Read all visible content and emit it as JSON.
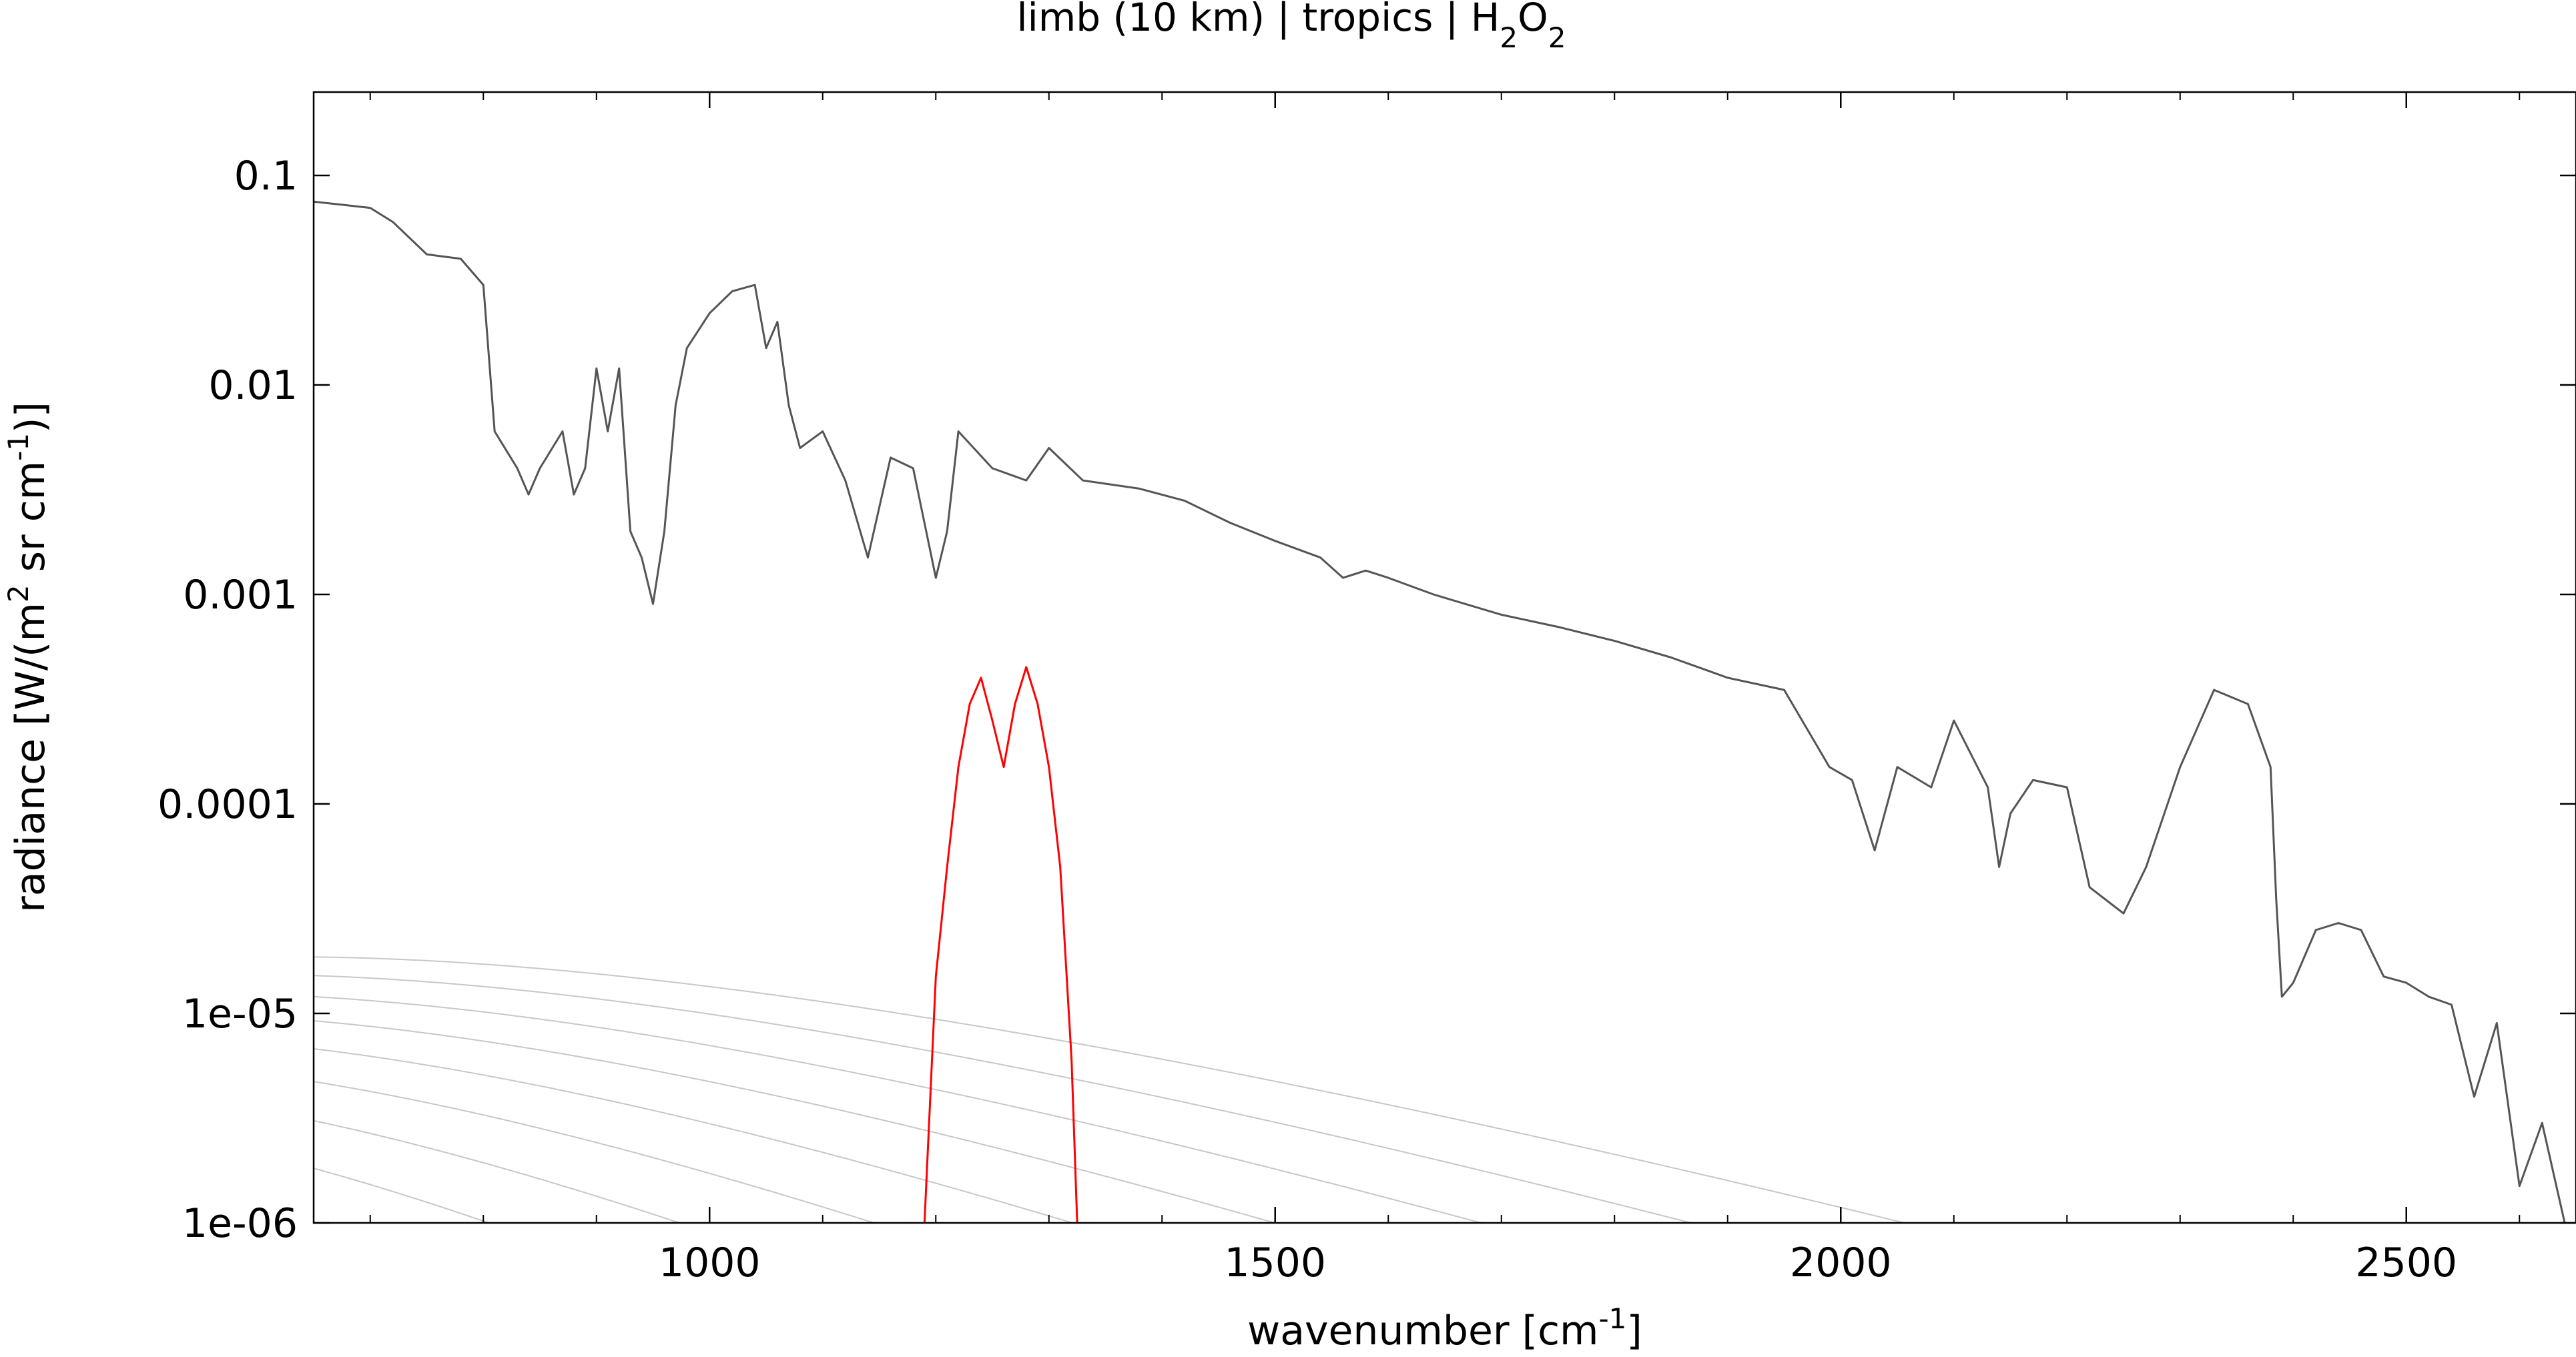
{
  "chart_data": {
    "type": "line",
    "title": {
      "prefix": "limb (10 km) | tropics | H",
      "sub1": "2",
      "mid": "O",
      "sub2": "2"
    },
    "xlabel": {
      "prefix": "wavenumber [cm",
      "sup": "-1",
      "suffix": "]"
    },
    "ylabel": {
      "prefix": "radiance [W/(m",
      "sup1": "2",
      "mid": " sr cm",
      "sup2": "-1",
      "suffix": ")]"
    },
    "x_range": [
      650,
      2650
    ],
    "y_range": [
      1e-06,
      0.25
    ],
    "y_scale": "log",
    "x_ticks": [
      1000,
      1500,
      2000,
      2500
    ],
    "x_tick_labels": [
      "1000",
      "1500",
      "2000",
      "2500"
    ],
    "y_ticks": [
      0.1,
      0.01,
      0.001,
      0.0001,
      1e-05,
      1e-06
    ],
    "y_tick_labels": [
      "0.1",
      "0.01",
      "0.001",
      "0.0001",
      "1e-05",
      "1e-06"
    ],
    "grid": false,
    "reference_curves_temperatures_K": [
      180,
      200,
      220,
      240,
      260,
      280,
      300,
      320
    ],
    "series": [
      {
        "role": "total-radiance",
        "color": "#555555",
        "points": [
          [
            650,
            0.075
          ],
          [
            700,
            0.07
          ],
          [
            720,
            0.06
          ],
          [
            750,
            0.042
          ],
          [
            780,
            0.04
          ],
          [
            800,
            0.03
          ],
          [
            810,
            0.006
          ],
          [
            830,
            0.004
          ],
          [
            840,
            0.003
          ],
          [
            850,
            0.004
          ],
          [
            870,
            0.006
          ],
          [
            880,
            0.003
          ],
          [
            890,
            0.004
          ],
          [
            900,
            0.012
          ],
          [
            910,
            0.006
          ],
          [
            920,
            0.012
          ],
          [
            930,
            0.002
          ],
          [
            940,
            0.0015
          ],
          [
            950,
            0.0009
          ],
          [
            960,
            0.002
          ],
          [
            970,
            0.008
          ],
          [
            980,
            0.015
          ],
          [
            1000,
            0.022
          ],
          [
            1020,
            0.028
          ],
          [
            1040,
            0.03
          ],
          [
            1050,
            0.015
          ],
          [
            1060,
            0.02
          ],
          [
            1070,
            0.008
          ],
          [
            1080,
            0.005
          ],
          [
            1100,
            0.006
          ],
          [
            1120,
            0.0035
          ],
          [
            1140,
            0.0015
          ],
          [
            1160,
            0.0045
          ],
          [
            1180,
            0.004
          ],
          [
            1200,
            0.0012
          ],
          [
            1210,
            0.002
          ],
          [
            1220,
            0.006
          ],
          [
            1250,
            0.004
          ],
          [
            1280,
            0.0035
          ],
          [
            1300,
            0.005
          ],
          [
            1330,
            0.0035
          ],
          [
            1380,
            0.0032
          ],
          [
            1420,
            0.0028
          ],
          [
            1460,
            0.0022
          ],
          [
            1500,
            0.0018
          ],
          [
            1540,
            0.0015
          ],
          [
            1560,
            0.0012
          ],
          [
            1580,
            0.0013
          ],
          [
            1600,
            0.0012
          ],
          [
            1640,
            0.001
          ],
          [
            1700,
            0.0008
          ],
          [
            1750,
            0.0007
          ],
          [
            1800,
            0.0006
          ],
          [
            1850,
            0.0005
          ],
          [
            1900,
            0.0004
          ],
          [
            1950,
            0.00035
          ],
          [
            1990,
            0.00015
          ],
          [
            2010,
            0.00013
          ],
          [
            2030,
            6e-05
          ],
          [
            2050,
            0.00015
          ],
          [
            2080,
            0.00012
          ],
          [
            2100,
            0.00025
          ],
          [
            2130,
            0.00012
          ],
          [
            2140,
            5e-05
          ],
          [
            2150,
            9e-05
          ],
          [
            2170,
            0.00013
          ],
          [
            2200,
            0.00012
          ],
          [
            2220,
            4e-05
          ],
          [
            2250,
            3e-05
          ],
          [
            2270,
            5e-05
          ],
          [
            2300,
            0.00015
          ],
          [
            2330,
            0.00035
          ],
          [
            2360,
            0.0003
          ],
          [
            2380,
            0.00015
          ],
          [
            2385,
            3.5e-05
          ],
          [
            2390,
            1.2e-05
          ],
          [
            2400,
            1.4e-05
          ],
          [
            2420,
            2.5e-05
          ],
          [
            2440,
            2.7e-05
          ],
          [
            2460,
            2.5e-05
          ],
          [
            2480,
            1.5e-05
          ],
          [
            2500,
            1.4e-05
          ],
          [
            2520,
            1.2e-05
          ],
          [
            2540,
            1.1e-05
          ],
          [
            2560,
            4e-06
          ],
          [
            2580,
            9e-06
          ],
          [
            2600,
            1.5e-06
          ],
          [
            2620,
            3e-06
          ],
          [
            2640,
            1e-06
          ]
        ]
      },
      {
        "role": "H2O2-contribution",
        "color": "#ff0000",
        "points": [
          [
            1190,
            1e-06
          ],
          [
            1200,
            1.5e-05
          ],
          [
            1210,
            5e-05
          ],
          [
            1220,
            0.00015
          ],
          [
            1230,
            0.0003
          ],
          [
            1240,
            0.0004
          ],
          [
            1250,
            0.00025
          ],
          [
            1260,
            0.00015
          ],
          [
            1270,
            0.0003
          ],
          [
            1280,
            0.00045
          ],
          [
            1290,
            0.0003
          ],
          [
            1300,
            0.00015
          ],
          [
            1310,
            5e-05
          ],
          [
            1320,
            6e-06
          ],
          [
            1325,
            1e-06
          ]
        ]
      }
    ]
  }
}
